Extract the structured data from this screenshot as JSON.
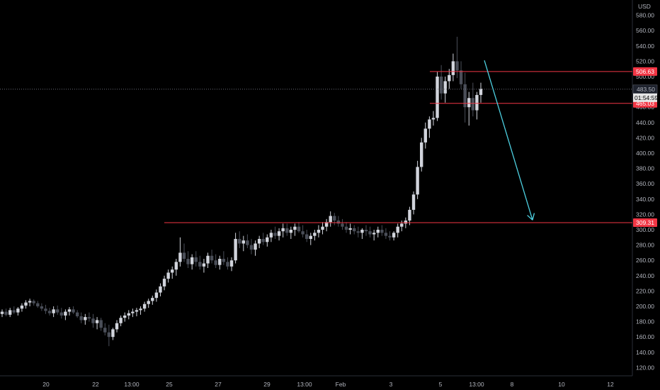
{
  "chart_data": {
    "type": "candlestick",
    "currency": "USD",
    "y_axis": {
      "range": [
        110,
        595
      ],
      "ticks": [
        "580.00",
        "560.00",
        "540.00",
        "520.00",
        "500.00",
        "480.00",
        "460.00",
        "440.00",
        "420.00",
        "400.00",
        "380.00",
        "360.00",
        "340.00",
        "320.00",
        "300.00",
        "280.00",
        "260.00",
        "240.00",
        "220.00",
        "200.00",
        "180.00",
        "160.00",
        "140.00",
        "120.00"
      ]
    },
    "x_axis": {
      "ticks": [
        "20",
        "22",
        "13:00",
        "25",
        "27",
        "29",
        "13:00",
        "Feb",
        "3",
        "5",
        "13:00",
        "8",
        "10",
        "12"
      ]
    },
    "last_price": {
      "value": "483.50",
      "countdown": "01:54:59"
    },
    "levels": [
      {
        "name": "resistance-upper",
        "value": 506.63,
        "label": "506.63",
        "color": "#f23645"
      },
      {
        "name": "resistance-lower",
        "value": 465.03,
        "label": "465.03",
        "color": "#f23645"
      },
      {
        "name": "support",
        "value": 309.31,
        "label": "309.31",
        "color": "#f23645"
      }
    ],
    "arrow": {
      "from_value": 510,
      "to_value": 309,
      "color": "#4dd0e1"
    },
    "candles": [
      [
        190,
        196,
        186,
        193
      ],
      [
        193,
        197,
        187,
        189
      ],
      [
        189,
        198,
        186,
        195
      ],
      [
        195,
        200,
        190,
        192
      ],
      [
        192,
        199,
        188,
        197
      ],
      [
        197,
        204,
        193,
        201
      ],
      [
        201,
        208,
        197,
        205
      ],
      [
        205,
        210,
        200,
        207
      ],
      [
        207,
        209,
        201,
        204
      ],
      [
        204,
        207,
        198,
        200
      ],
      [
        200,
        204,
        194,
        197
      ],
      [
        197,
        202,
        190,
        194
      ],
      [
        194,
        198,
        188,
        191
      ],
      [
        191,
        200,
        186,
        196
      ],
      [
        196,
        201,
        189,
        192
      ],
      [
        192,
        198,
        184,
        188
      ],
      [
        188,
        196,
        182,
        193
      ],
      [
        193,
        199,
        188,
        196
      ],
      [
        196,
        200,
        190,
        192
      ],
      [
        192,
        195,
        185,
        187
      ],
      [
        187,
        192,
        178,
        182
      ],
      [
        182,
        190,
        176,
        186
      ],
      [
        186,
        192,
        180,
        184
      ],
      [
        184,
        190,
        172,
        178
      ],
      [
        178,
        186,
        170,
        182
      ],
      [
        182,
        185,
        168,
        172
      ],
      [
        172,
        178,
        162,
        166
      ],
      [
        166,
        176,
        148,
        160
      ],
      [
        160,
        172,
        156,
        170
      ],
      [
        170,
        182,
        166,
        178
      ],
      [
        178,
        188,
        174,
        185
      ],
      [
        185,
        192,
        180,
        188
      ],
      [
        188,
        195,
        183,
        191
      ],
      [
        191,
        197,
        186,
        193
      ],
      [
        193,
        198,
        187,
        195
      ],
      [
        195,
        200,
        189,
        197
      ],
      [
        197,
        206,
        193,
        203
      ],
      [
        203,
        210,
        198,
        207
      ],
      [
        207,
        214,
        202,
        211
      ],
      [
        211,
        222,
        206,
        218
      ],
      [
        218,
        230,
        213,
        226
      ],
      [
        226,
        240,
        221,
        236
      ],
      [
        236,
        248,
        231,
        244
      ],
      [
        244,
        252,
        236,
        248
      ],
      [
        248,
        262,
        240,
        258
      ],
      [
        258,
        290,
        252,
        270
      ],
      [
        270,
        282,
        258,
        262
      ],
      [
        262,
        272,
        250,
        255
      ],
      [
        255,
        268,
        248,
        264
      ],
      [
        264,
        272,
        252,
        258
      ],
      [
        258,
        266,
        248,
        252
      ],
      [
        252,
        262,
        244,
        256
      ],
      [
        256,
        270,
        250,
        266
      ],
      [
        266,
        274,
        256,
        260
      ],
      [
        260,
        268,
        250,
        254
      ],
      [
        254,
        266,
        248,
        262
      ],
      [
        262,
        272,
        254,
        258
      ],
      [
        258,
        264,
        248,
        252
      ],
      [
        252,
        264,
        246,
        260
      ],
      [
        260,
        296,
        256,
        288
      ],
      [
        288,
        298,
        276,
        282
      ],
      [
        282,
        292,
        272,
        286
      ],
      [
        286,
        294,
        276,
        280
      ],
      [
        280,
        288,
        268,
        274
      ],
      [
        274,
        286,
        266,
        282
      ],
      [
        282,
        292,
        276,
        288
      ],
      [
        288,
        296,
        280,
        284
      ],
      [
        284,
        294,
        278,
        290
      ],
      [
        290,
        300,
        284,
        296
      ],
      [
        296,
        304,
        288,
        292
      ],
      [
        292,
        302,
        286,
        298
      ],
      [
        298,
        308,
        290,
        302
      ],
      [
        302,
        308,
        292,
        296
      ],
      [
        296,
        304,
        288,
        300
      ],
      [
        300,
        308,
        292,
        304
      ],
      [
        304,
        310,
        296,
        298
      ],
      [
        298,
        306,
        290,
        294
      ],
      [
        294,
        300,
        284,
        288
      ],
      [
        288,
        296,
        280,
        292
      ],
      [
        292,
        300,
        286,
        296
      ],
      [
        296,
        306,
        290,
        300
      ],
      [
        300,
        310,
        294,
        304
      ],
      [
        304,
        314,
        298,
        310
      ],
      [
        310,
        324,
        304,
        318
      ],
      [
        318,
        322,
        306,
        312
      ],
      [
        312,
        318,
        304,
        308
      ],
      [
        308,
        314,
        300,
        304
      ],
      [
        304,
        310,
        296,
        300
      ],
      [
        300,
        308,
        294,
        302
      ],
      [
        302,
        306,
        294,
        298
      ],
      [
        298,
        304,
        290,
        296
      ],
      [
        296,
        302,
        288,
        300
      ],
      [
        300,
        306,
        292,
        298
      ],
      [
        298,
        304,
        290,
        294
      ],
      [
        294,
        300,
        286,
        296
      ],
      [
        296,
        304,
        290,
        300
      ],
      [
        300,
        306,
        292,
        296
      ],
      [
        296,
        302,
        288,
        292
      ],
      [
        292,
        298,
        286,
        290
      ],
      [
        290,
        298,
        286,
        296
      ],
      [
        296,
        308,
        290,
        304
      ],
      [
        304,
        312,
        298,
        308
      ],
      [
        308,
        316,
        302,
        312
      ],
      [
        312,
        330,
        306,
        326
      ],
      [
        326,
        350,
        320,
        346
      ],
      [
        346,
        390,
        340,
        382
      ],
      [
        382,
        420,
        376,
        414
      ],
      [
        414,
        440,
        406,
        432
      ],
      [
        432,
        448,
        420,
        444
      ],
      [
        444,
        455,
        436,
        446
      ],
      [
        446,
        506,
        442,
        500
      ],
      [
        500,
        515,
        470,
        478
      ],
      [
        478,
        500,
        466,
        494
      ],
      [
        494,
        510,
        484,
        502
      ],
      [
        502,
        530,
        494,
        520
      ],
      [
        520,
        552,
        498,
        508
      ],
      [
        508,
        520,
        484,
        490
      ],
      [
        490,
        505,
        440,
        460
      ],
      [
        460,
        480,
        436,
        472
      ],
      [
        472,
        492,
        448,
        456
      ],
      [
        456,
        480,
        444,
        476
      ],
      [
        476,
        492,
        466,
        484
      ]
    ]
  }
}
